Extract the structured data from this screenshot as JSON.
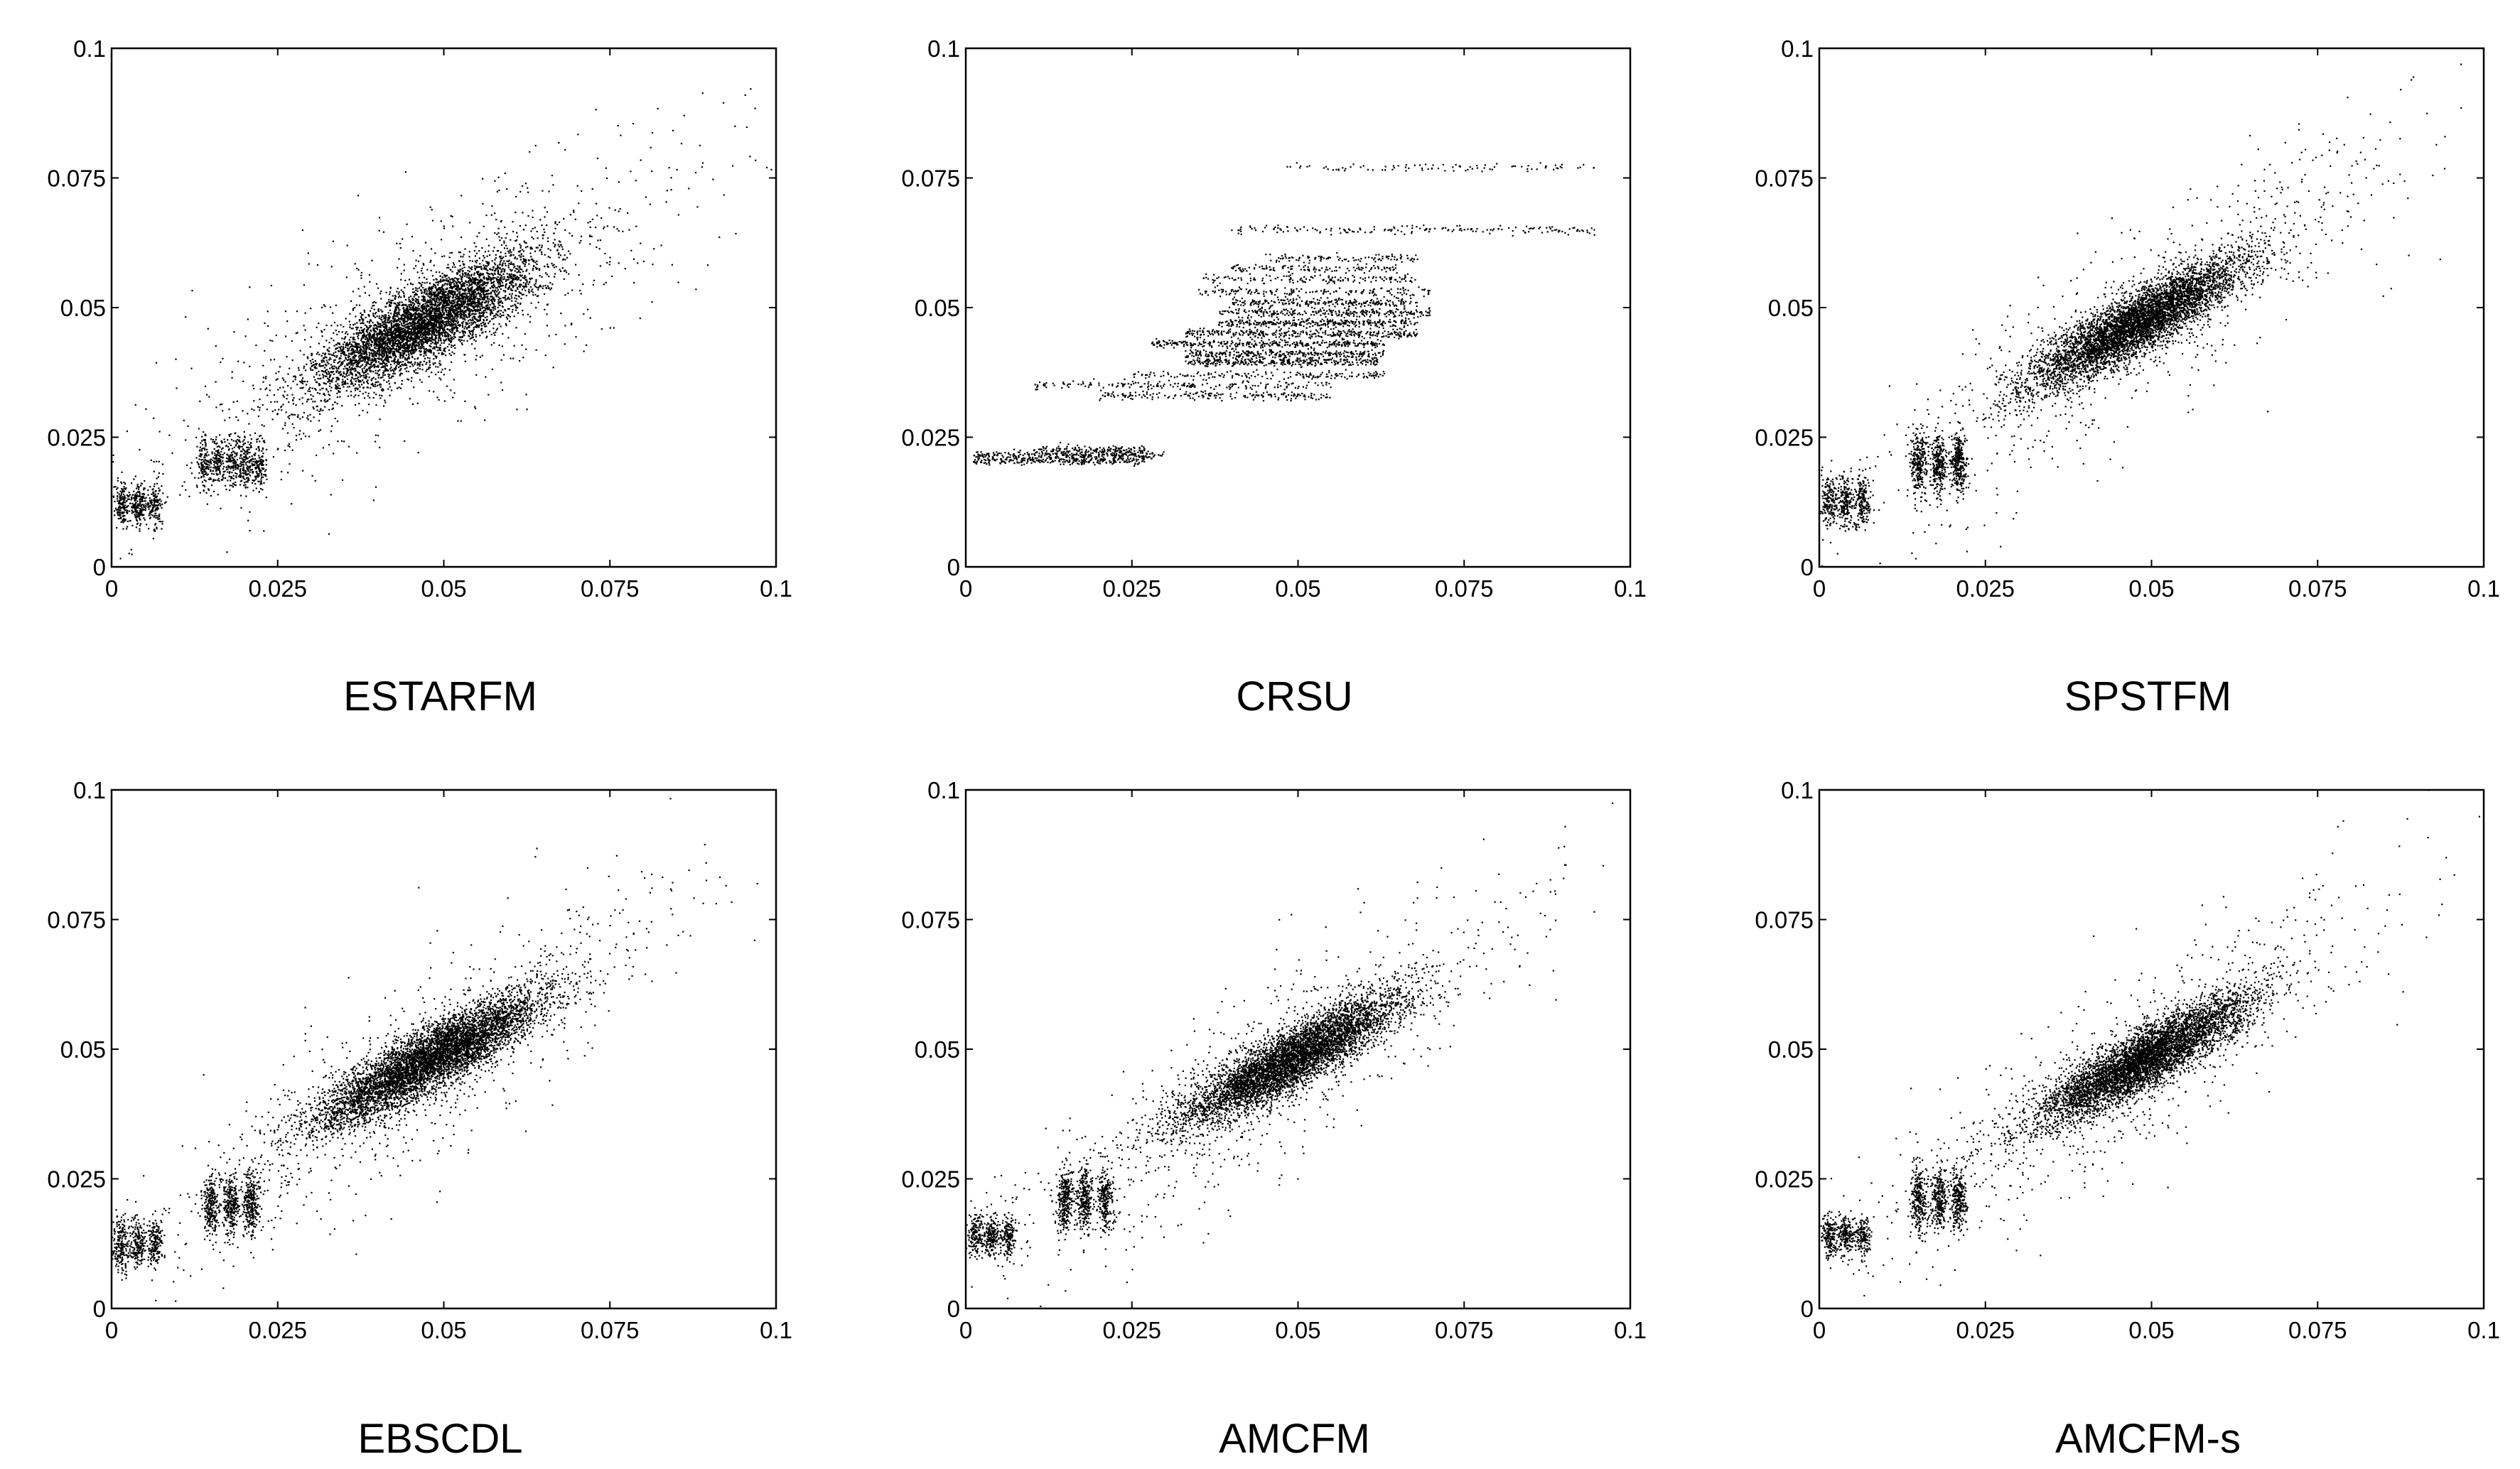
{
  "chart_data": [
    {
      "type": "scatter",
      "title": "ESTARFM",
      "xlim": [
        0,
        0.1
      ],
      "ylim": [
        0,
        0.1
      ],
      "xticks": [
        "0",
        "0.025",
        "0.05",
        "0.075",
        "0.1"
      ],
      "yticks": [
        "0",
        "0.025",
        "0.05",
        "0.075",
        "0.1"
      ],
      "point_color": "#000000",
      "clusters": [
        {
          "cx": 0.004,
          "cy": 0.012,
          "sx": 0.0025,
          "sy": 0.002,
          "rho": 0.0,
          "n": 500,
          "stripes": [
            0.0015,
            0.004,
            0.0065
          ]
        },
        {
          "cx": 0.018,
          "cy": 0.02,
          "sx": 0.004,
          "sy": 0.0025,
          "rho": 0.15,
          "n": 700,
          "stripes": [
            0.014,
            0.016,
            0.018,
            0.02,
            0.022
          ]
        },
        {
          "cx": 0.047,
          "cy": 0.047,
          "sx": 0.0085,
          "sy": 0.0065,
          "rho": 0.82,
          "n": 5200
        },
        {
          "cx": 0.045,
          "cy": 0.045,
          "sx": 0.022,
          "sy": 0.018,
          "rho": 0.8,
          "n": 900
        }
      ]
    },
    {
      "type": "scatter",
      "title": "CRSU",
      "xlim": [
        0,
        0.1
      ],
      "ylim": [
        0,
        0.1
      ],
      "xticks": [
        "0",
        "0.025",
        "0.05",
        "0.075",
        "0.1"
      ],
      "yticks": [
        "0",
        "0.025",
        "0.05",
        "0.075",
        "0.1"
      ],
      "point_color": "#000000",
      "bands": [
        {
          "y": 0.0205,
          "x0": 0.001,
          "x1": 0.027,
          "n": 260
        },
        {
          "y": 0.0215,
          "x0": 0.001,
          "x1": 0.03,
          "n": 260
        },
        {
          "y": 0.0225,
          "x0": 0.01,
          "x1": 0.027,
          "n": 160
        },
        {
          "y": 0.033,
          "x0": 0.02,
          "x1": 0.055,
          "n": 180
        },
        {
          "y": 0.035,
          "x0": 0.01,
          "x1": 0.055,
          "n": 180
        },
        {
          "y": 0.037,
          "x0": 0.025,
          "x1": 0.063,
          "n": 160
        },
        {
          "y": 0.0395,
          "x0": 0.033,
          "x1": 0.062,
          "n": 300
        },
        {
          "y": 0.041,
          "x0": 0.033,
          "x1": 0.063,
          "n": 300
        },
        {
          "y": 0.043,
          "x0": 0.028,
          "x1": 0.063,
          "n": 320
        },
        {
          "y": 0.045,
          "x0": 0.033,
          "x1": 0.068,
          "n": 320
        },
        {
          "y": 0.047,
          "x0": 0.038,
          "x1": 0.068,
          "n": 300
        },
        {
          "y": 0.049,
          "x0": 0.038,
          "x1": 0.07,
          "n": 260
        },
        {
          "y": 0.051,
          "x0": 0.04,
          "x1": 0.068,
          "n": 220
        },
        {
          "y": 0.053,
          "x0": 0.035,
          "x1": 0.07,
          "n": 160
        },
        {
          "y": 0.0555,
          "x0": 0.035,
          "x1": 0.068,
          "n": 140
        },
        {
          "y": 0.0575,
          "x0": 0.04,
          "x1": 0.065,
          "n": 120
        },
        {
          "y": 0.0595,
          "x0": 0.045,
          "x1": 0.068,
          "n": 100
        },
        {
          "y": 0.065,
          "x0": 0.04,
          "x1": 0.095,
          "n": 170
        },
        {
          "y": 0.077,
          "x0": 0.048,
          "x1": 0.095,
          "n": 90
        }
      ]
    },
    {
      "type": "scatter",
      "title": "SPSTFM",
      "xlim": [
        0,
        0.1
      ],
      "ylim": [
        0,
        0.1
      ],
      "xticks": [
        "0",
        "0.025",
        "0.05",
        "0.075",
        "0.1"
      ],
      "yticks": [
        "0",
        "0.025",
        "0.05",
        "0.075",
        "0.1"
      ],
      "point_color": "#000000",
      "clusters": [
        {
          "cx": 0.004,
          "cy": 0.0125,
          "sx": 0.0025,
          "sy": 0.0025,
          "rho": 0.0,
          "n": 550,
          "stripes": [
            0.0015,
            0.004,
            0.0065
          ]
        },
        {
          "cx": 0.019,
          "cy": 0.02,
          "sx": 0.005,
          "sy": 0.003,
          "rho": 0.3,
          "n": 800,
          "stripes": [
            0.015,
            0.018,
            0.021
          ]
        },
        {
          "cx": 0.048,
          "cy": 0.047,
          "sx": 0.008,
          "sy": 0.0062,
          "rho": 0.88,
          "n": 5400
        },
        {
          "cx": 0.045,
          "cy": 0.044,
          "sx": 0.021,
          "sy": 0.019,
          "rho": 0.88,
          "n": 800
        }
      ]
    },
    {
      "type": "scatter",
      "title": "EBSCDL",
      "xlim": [
        0,
        0.1
      ],
      "ylim": [
        0,
        0.1
      ],
      "xticks": [
        "0",
        "0.025",
        "0.05",
        "0.075",
        "0.1"
      ],
      "yticks": [
        "0",
        "0.025",
        "0.05",
        "0.075",
        "0.1"
      ],
      "point_color": "#000000",
      "clusters": [
        {
          "cx": 0.004,
          "cy": 0.0125,
          "sx": 0.0025,
          "sy": 0.0025,
          "rho": 0.0,
          "n": 550,
          "stripes": [
            0.0015,
            0.004,
            0.0065
          ]
        },
        {
          "cx": 0.019,
          "cy": 0.02,
          "sx": 0.005,
          "sy": 0.003,
          "rho": 0.3,
          "n": 800,
          "stripes": [
            0.015,
            0.018,
            0.021
          ]
        },
        {
          "cx": 0.048,
          "cy": 0.048,
          "sx": 0.0085,
          "sy": 0.0065,
          "rho": 0.88,
          "n": 5600
        },
        {
          "cx": 0.045,
          "cy": 0.045,
          "sx": 0.021,
          "sy": 0.019,
          "rho": 0.88,
          "n": 800
        }
      ]
    },
    {
      "type": "scatter",
      "title": "AMCFM",
      "xlim": [
        0,
        0.1
      ],
      "ylim": [
        0,
        0.1
      ],
      "xticks": [
        "0",
        "0.025",
        "0.05",
        "0.075",
        "0.1"
      ],
      "yticks": [
        "0",
        "0.025",
        "0.05",
        "0.075",
        "0.1"
      ],
      "point_color": "#000000",
      "clusters": [
        {
          "cx": 0.004,
          "cy": 0.014,
          "sx": 0.0025,
          "sy": 0.002,
          "rho": 0.0,
          "n": 500,
          "stripes": [
            0.0015,
            0.004,
            0.0065
          ]
        },
        {
          "cx": 0.019,
          "cy": 0.021,
          "sx": 0.005,
          "sy": 0.003,
          "rho": 0.3,
          "n": 800,
          "stripes": [
            0.015,
            0.018,
            0.021
          ]
        },
        {
          "cx": 0.049,
          "cy": 0.048,
          "sx": 0.008,
          "sy": 0.0062,
          "rho": 0.88,
          "n": 5200
        },
        {
          "cx": 0.045,
          "cy": 0.045,
          "sx": 0.021,
          "sy": 0.019,
          "rho": 0.88,
          "n": 800
        }
      ]
    },
    {
      "type": "scatter",
      "title": "AMCFM-s",
      "xlim": [
        0,
        0.1
      ],
      "ylim": [
        0,
        0.1
      ],
      "xticks": [
        "0",
        "0.025",
        "0.05",
        "0.075",
        "0.1"
      ],
      "yticks": [
        "0",
        "0.025",
        "0.05",
        "0.075",
        "0.1"
      ],
      "point_color": "#000000",
      "clusters": [
        {
          "cx": 0.004,
          "cy": 0.014,
          "sx": 0.0025,
          "sy": 0.002,
          "rho": 0.0,
          "n": 500,
          "stripes": [
            0.0015,
            0.004,
            0.0065
          ]
        },
        {
          "cx": 0.019,
          "cy": 0.021,
          "sx": 0.005,
          "sy": 0.003,
          "rho": 0.3,
          "n": 800,
          "stripes": [
            0.015,
            0.018,
            0.021
          ]
        },
        {
          "cx": 0.049,
          "cy": 0.048,
          "sx": 0.008,
          "sy": 0.0062,
          "rho": 0.88,
          "n": 5200
        },
        {
          "cx": 0.045,
          "cy": 0.045,
          "sx": 0.021,
          "sy": 0.019,
          "rho": 0.88,
          "n": 800
        }
      ]
    }
  ]
}
